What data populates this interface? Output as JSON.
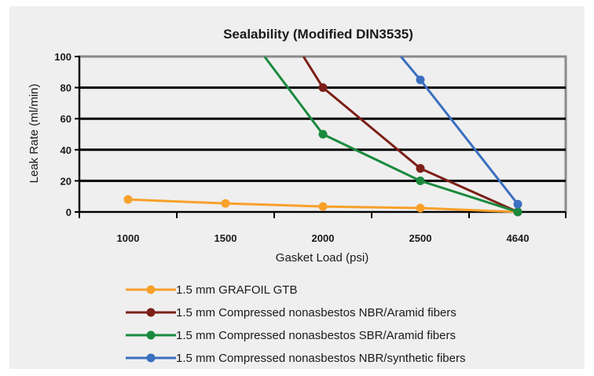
{
  "chart_data": {
    "type": "line",
    "title": "Sealability (Modified DIN3535)",
    "xlabel": "Gasket Load (psi)",
    "ylabel": "Leak Rate (ml/min)",
    "categories": [
      "1000",
      "1500",
      "2000",
      "2500",
      "4640"
    ],
    "ylim": [
      0,
      100
    ],
    "yticks": [
      0,
      20,
      40,
      60,
      80,
      100
    ],
    "grid": true,
    "legend_position": "bottom",
    "series": [
      {
        "name": "1.5 mm GRAFOIL GTB",
        "color": "#f7a12b",
        "points": [
          [
            1000,
            8
          ],
          [
            1500,
            5.5
          ],
          [
            2000,
            3.5
          ],
          [
            2500,
            2.5
          ],
          [
            4640,
            0
          ]
        ],
        "start": null,
        "markers": [
          true,
          true,
          true,
          true,
          true
        ]
      },
      {
        "name": "1.5 mm Compressed nonasbestos NBR/Aramid fibers",
        "color": "#7d1f18",
        "points": [
          [
            2000,
            80
          ],
          [
            2500,
            28
          ],
          [
            4640,
            0
          ]
        ],
        "start": [
          1900,
          100
        ],
        "markers": [
          true,
          true,
          true
        ]
      },
      {
        "name": "1.5 mm Compressed nonasbestos SBR/Aramid fibers",
        "color": "#1b8a3e",
        "points": [
          [
            2000,
            50
          ],
          [
            2500,
            20
          ],
          [
            4640,
            0
          ]
        ],
        "start": [
          1700,
          100
        ],
        "markers": [
          true,
          true,
          true
        ]
      },
      {
        "name": "1.5 mm Compressed nonasbestos NBR/synthetic fibers",
        "color": "#3b6fc0",
        "points": [
          [
            2500,
            85
          ],
          [
            4640,
            5
          ]
        ],
        "start": [
          2400,
          100
        ],
        "markers": [
          true,
          true
        ]
      }
    ]
  }
}
